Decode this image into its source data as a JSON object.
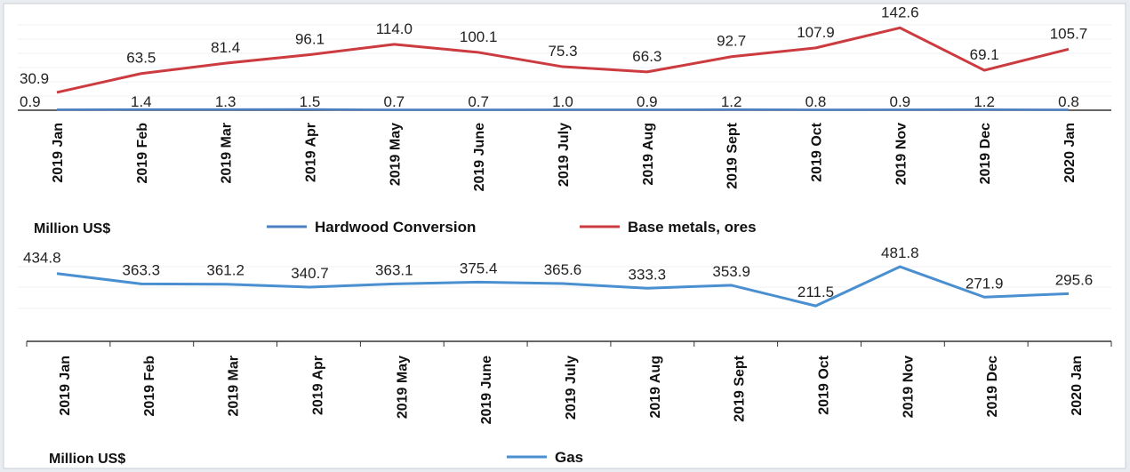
{
  "chart_data": [
    {
      "type": "line",
      "categories": [
        "2019 Jan",
        "2019 Feb",
        "2019 Mar",
        "2019 Apr",
        "2019 May",
        "2019 June",
        "2019 July",
        "2019 Aug",
        "2019 Sept",
        "2019 Oct",
        "2019 Nov",
        "2019 Dec",
        "2020 Jan"
      ],
      "series": [
        {
          "name": "Hardwood Conversion",
          "color": "#4a7fc1",
          "values": [
            0.9,
            1.4,
            1.3,
            1.5,
            0.7,
            0.7,
            1.0,
            0.9,
            1.2,
            0.8,
            0.9,
            1.2,
            0.8
          ],
          "labels": [
            "0.9",
            "1.4",
            "1.3",
            "1.5",
            "0.7",
            "0.7",
            "1.0",
            "0.9",
            "1.2",
            "0.8",
            "0.9",
            "1.2",
            "0.8"
          ]
        },
        {
          "name": "Base metals, ores",
          "color": "#cc3b3f",
          "values": [
            30.9,
            63.5,
            81.4,
            96.1,
            114.0,
            100.1,
            75.3,
            66.3,
            92.7,
            107.9,
            142.6,
            69.1,
            105.7
          ],
          "labels": [
            "30.9",
            "63.5",
            "81.4",
            "96.1",
            "114.0",
            "100.1",
            "75.3",
            "66.3",
            "92.7",
            "107.9",
            "142.6",
            "69.1",
            "105.7"
          ]
        }
      ],
      "ylabel": "Million US$",
      "ylim": [
        0,
        160
      ],
      "grid": true,
      "legend": "bottom"
    },
    {
      "type": "line",
      "categories": [
        "2019 Jan",
        "2019 Feb",
        "2019 Mar",
        "2019 Apr",
        "2019 May",
        "2019 June",
        "2019 July",
        "2019 Aug",
        "2019 Sept",
        "2019 Oct",
        "2019 Nov",
        "2019 Dec",
        "2020 Jan"
      ],
      "series": [
        {
          "name": "Gas",
          "color": "#4a8fd0",
          "values": [
            434.8,
            363.3,
            361.2,
            340.7,
            363.1,
            375.4,
            365.6,
            333.3,
            353.9,
            211.5,
            481.8,
            271.9,
            295.6
          ],
          "labels": [
            "434.8",
            "363.3",
            "361.2",
            "340.7",
            "363.1",
            "375.4",
            "365.6",
            "333.3",
            "353.9",
            "211.5",
            "481.8",
            "271.9",
            "295.6"
          ]
        }
      ],
      "ylabel": "Million US$",
      "ylim": [
        0,
        500
      ],
      "grid": true,
      "legend": "bottom"
    }
  ]
}
